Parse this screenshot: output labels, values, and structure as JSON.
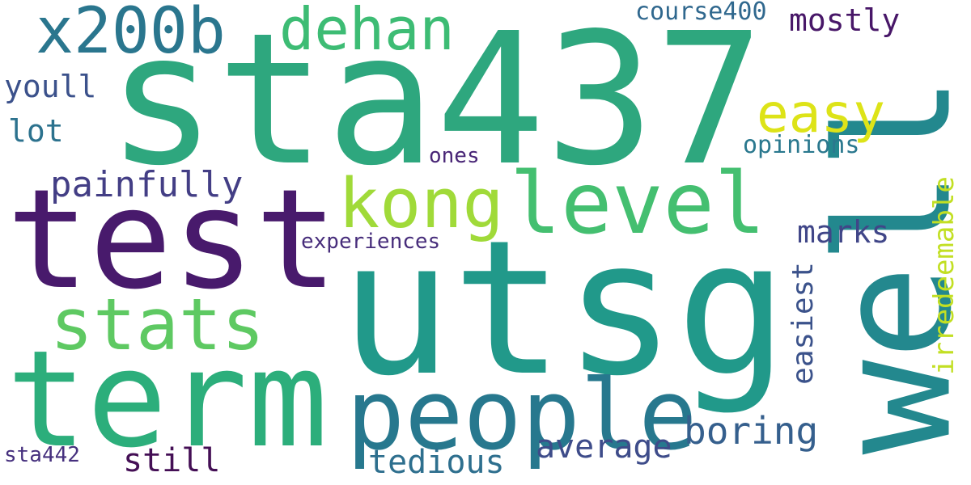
{
  "words": {
    "sta437": {
      "text": "sta437",
      "color": "#2ea77e"
    },
    "utsg": {
      "text": "utsg",
      "color": "#21998a"
    },
    "well": {
      "text": "well",
      "color": "#23888e"
    },
    "test": {
      "text": "test",
      "color": "#481a6c"
    },
    "term": {
      "text": "term",
      "color": "#2cae7b"
    },
    "people": {
      "text": "people",
      "color": "#27788e"
    },
    "level": {
      "text": "level",
      "color": "#44bf70"
    },
    "stats": {
      "text": "stats",
      "color": "#5ec962"
    },
    "kong": {
      "text": "kong",
      "color": "#a0da39"
    },
    "x200b": {
      "text": "x200b",
      "color": "#2a768e"
    },
    "dehan": {
      "text": "dehan",
      "color": "#3dbc74"
    },
    "easy": {
      "text": "easy",
      "color": "#dde318"
    },
    "boring": {
      "text": "boring",
      "color": "#355f8d"
    },
    "painfully": {
      "text": "painfully",
      "color": "#433e85"
    },
    "average": {
      "text": "average",
      "color": "#3e4c8a"
    },
    "tedious": {
      "text": "tedious",
      "color": "#2e6f8e"
    },
    "still": {
      "text": "still",
      "color": "#440f55"
    },
    "marks": {
      "text": "marks",
      "color": "#404688"
    },
    "mostly": {
      "text": "mostly",
      "color": "#481768"
    },
    "youll": {
      "text": "youll",
      "color": "#3b518b"
    },
    "lot": {
      "text": "lot",
      "color": "#2c728e"
    },
    "irredeemable": {
      "text": "irredeemable",
      "color": "#c2df23"
    },
    "easiest": {
      "text": "easiest",
      "color": "#3b528b"
    },
    "course400": {
      "text": "course400",
      "color": "#30688e"
    },
    "opinions": {
      "text": "opinions",
      "color": "#2a788e"
    },
    "experiences": {
      "text": "experiences",
      "color": "#472d7b"
    },
    "ones": {
      "text": "ones",
      "color": "#482576"
    },
    "sta442": {
      "text": "sta442",
      "color": "#46307e"
    }
  }
}
